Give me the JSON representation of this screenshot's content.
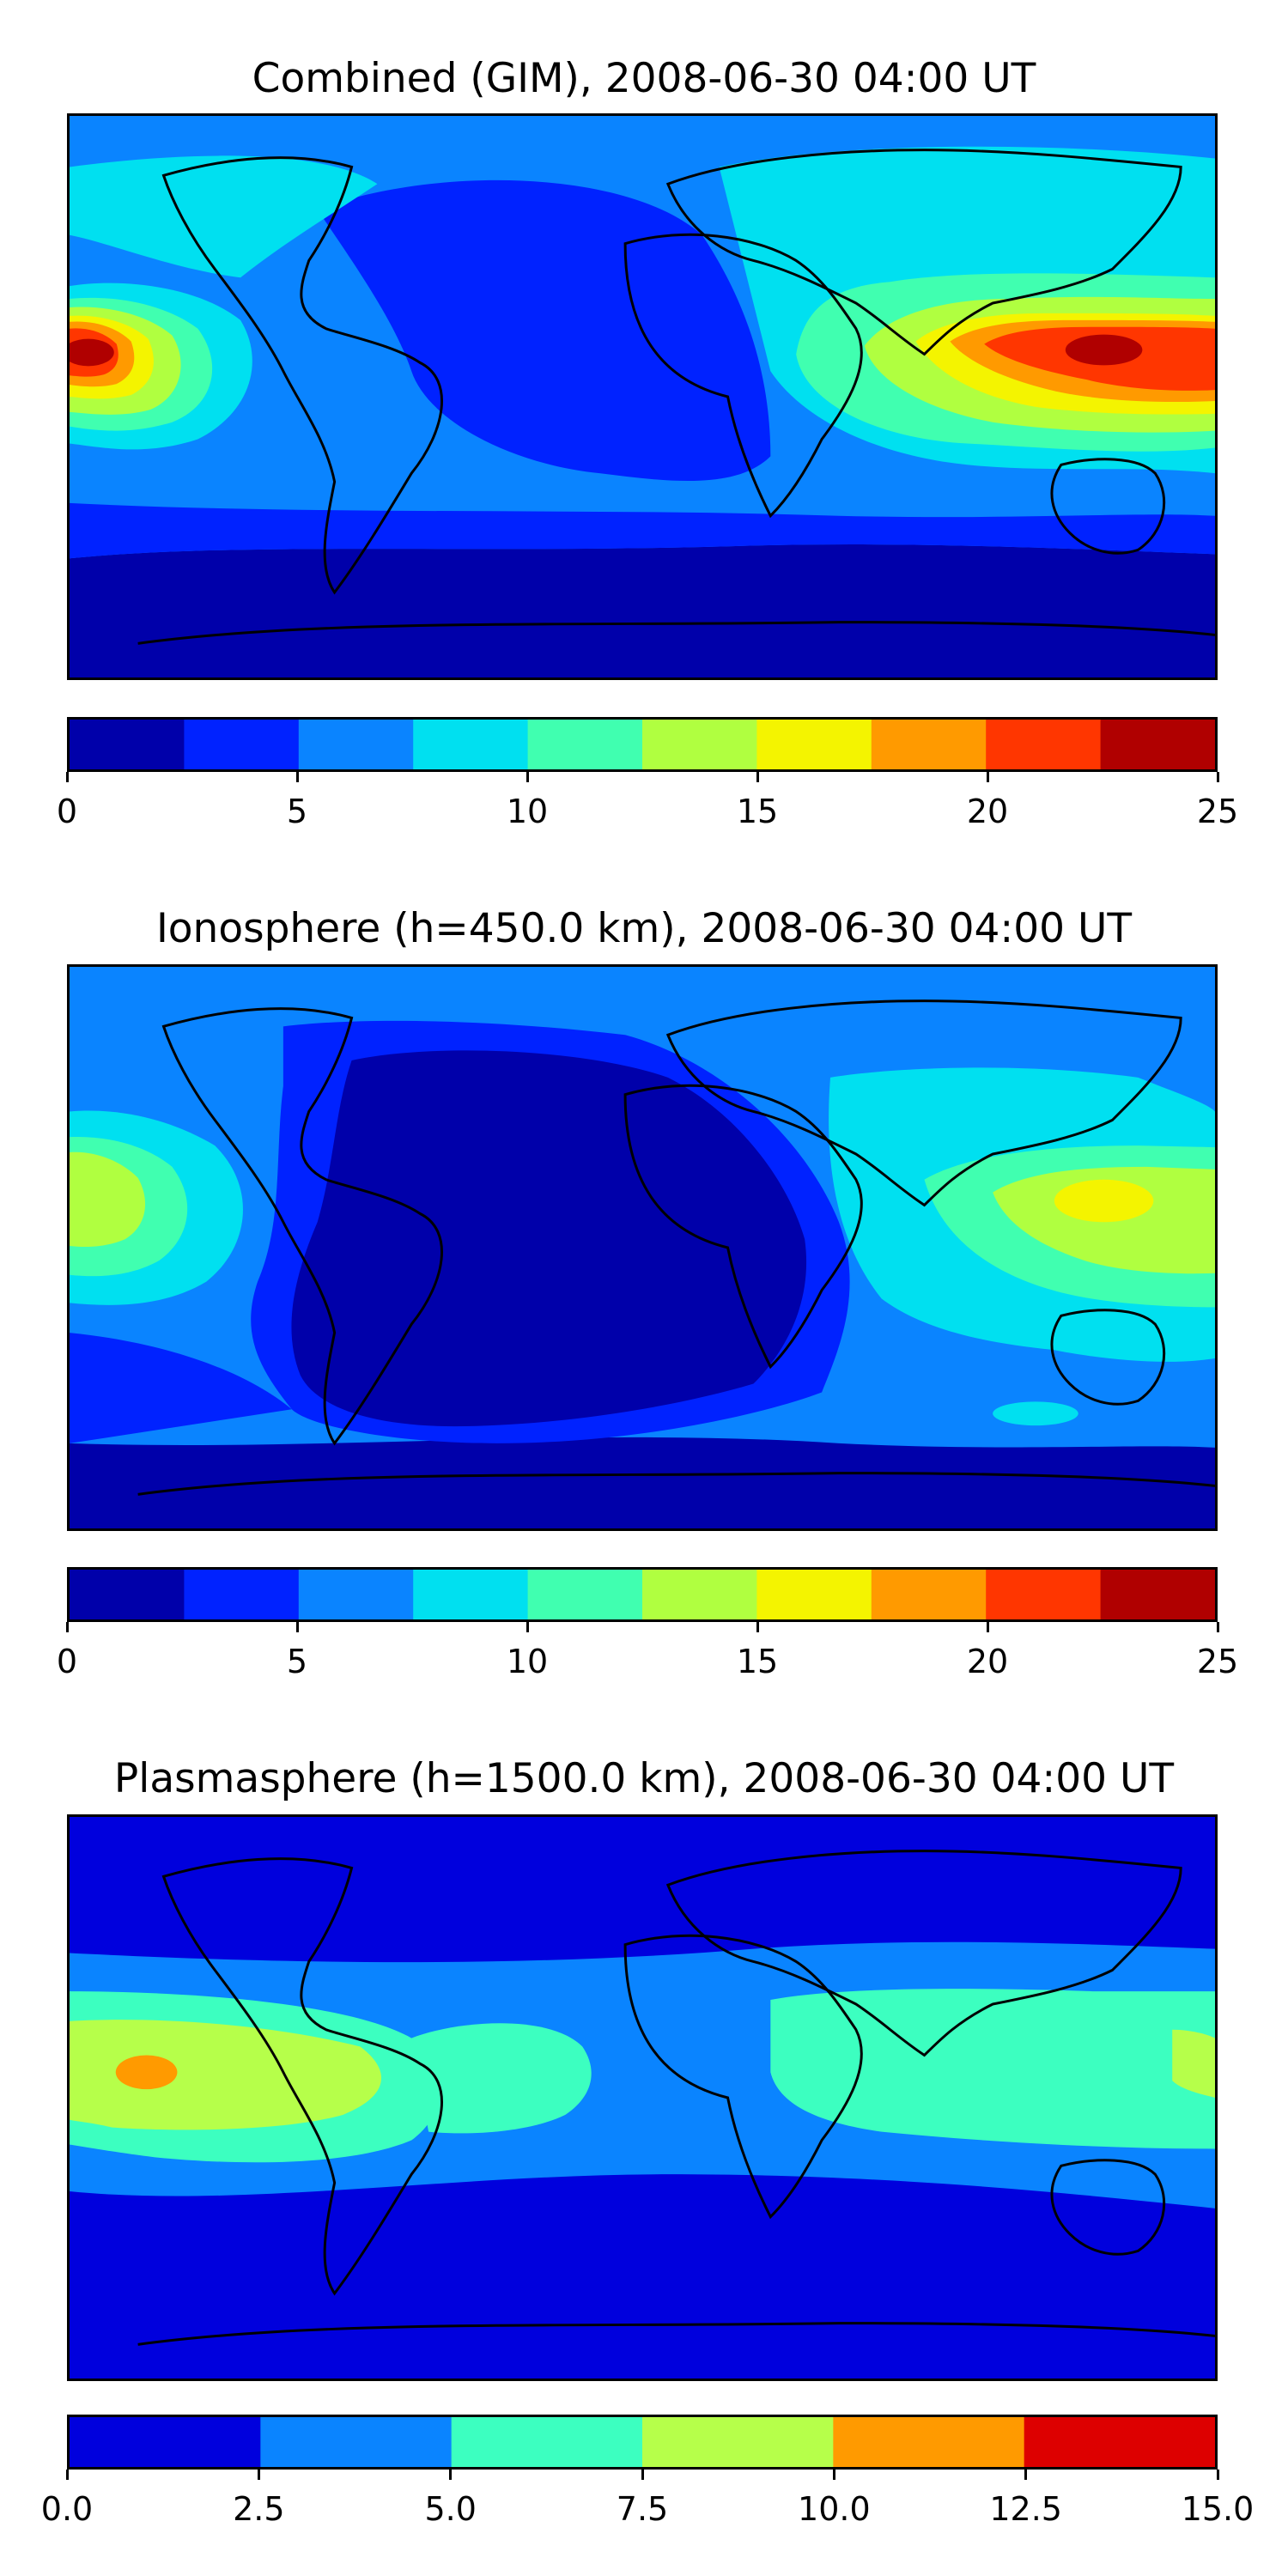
{
  "panels": [
    {
      "title": "Combined (GIM), 2008-06-30 04:00 UT",
      "colorbar": {
        "colors": [
          "#0000aa",
          "#0022ff",
          "#0a84ff",
          "#00e0f0",
          "#40ffb0",
          "#b0ff40",
          "#f4f400",
          "#ff9a00",
          "#ff3600",
          "#b00000"
        ],
        "ticks": [
          "0",
          "5",
          "10",
          "15",
          "20",
          "25"
        ]
      }
    },
    {
      "title": "Ionosphere  (h=450.0 km), 2008-06-30 04:00 UT",
      "colorbar": {
        "colors": [
          "#0000aa",
          "#0022ff",
          "#0a84ff",
          "#00e0f0",
          "#40ffb0",
          "#b0ff40",
          "#f4f400",
          "#ff9a00",
          "#ff3600",
          "#b00000"
        ],
        "ticks": [
          "0",
          "5",
          "10",
          "15",
          "20",
          "25"
        ]
      }
    },
    {
      "title": "Plasmasphere (h=1500.0 km), 2008-06-30 04:00 UT",
      "colorbar": {
        "colors": [
          "#0000dd",
          "#0a84ff",
          "#3cffc0",
          "#b6ff4a",
          "#ff9a00",
          "#dd0000"
        ],
        "ticks": [
          "0.0",
          "2.5",
          "5.0",
          "7.5",
          "10.0",
          "12.5",
          "15.0"
        ]
      }
    }
  ]
}
